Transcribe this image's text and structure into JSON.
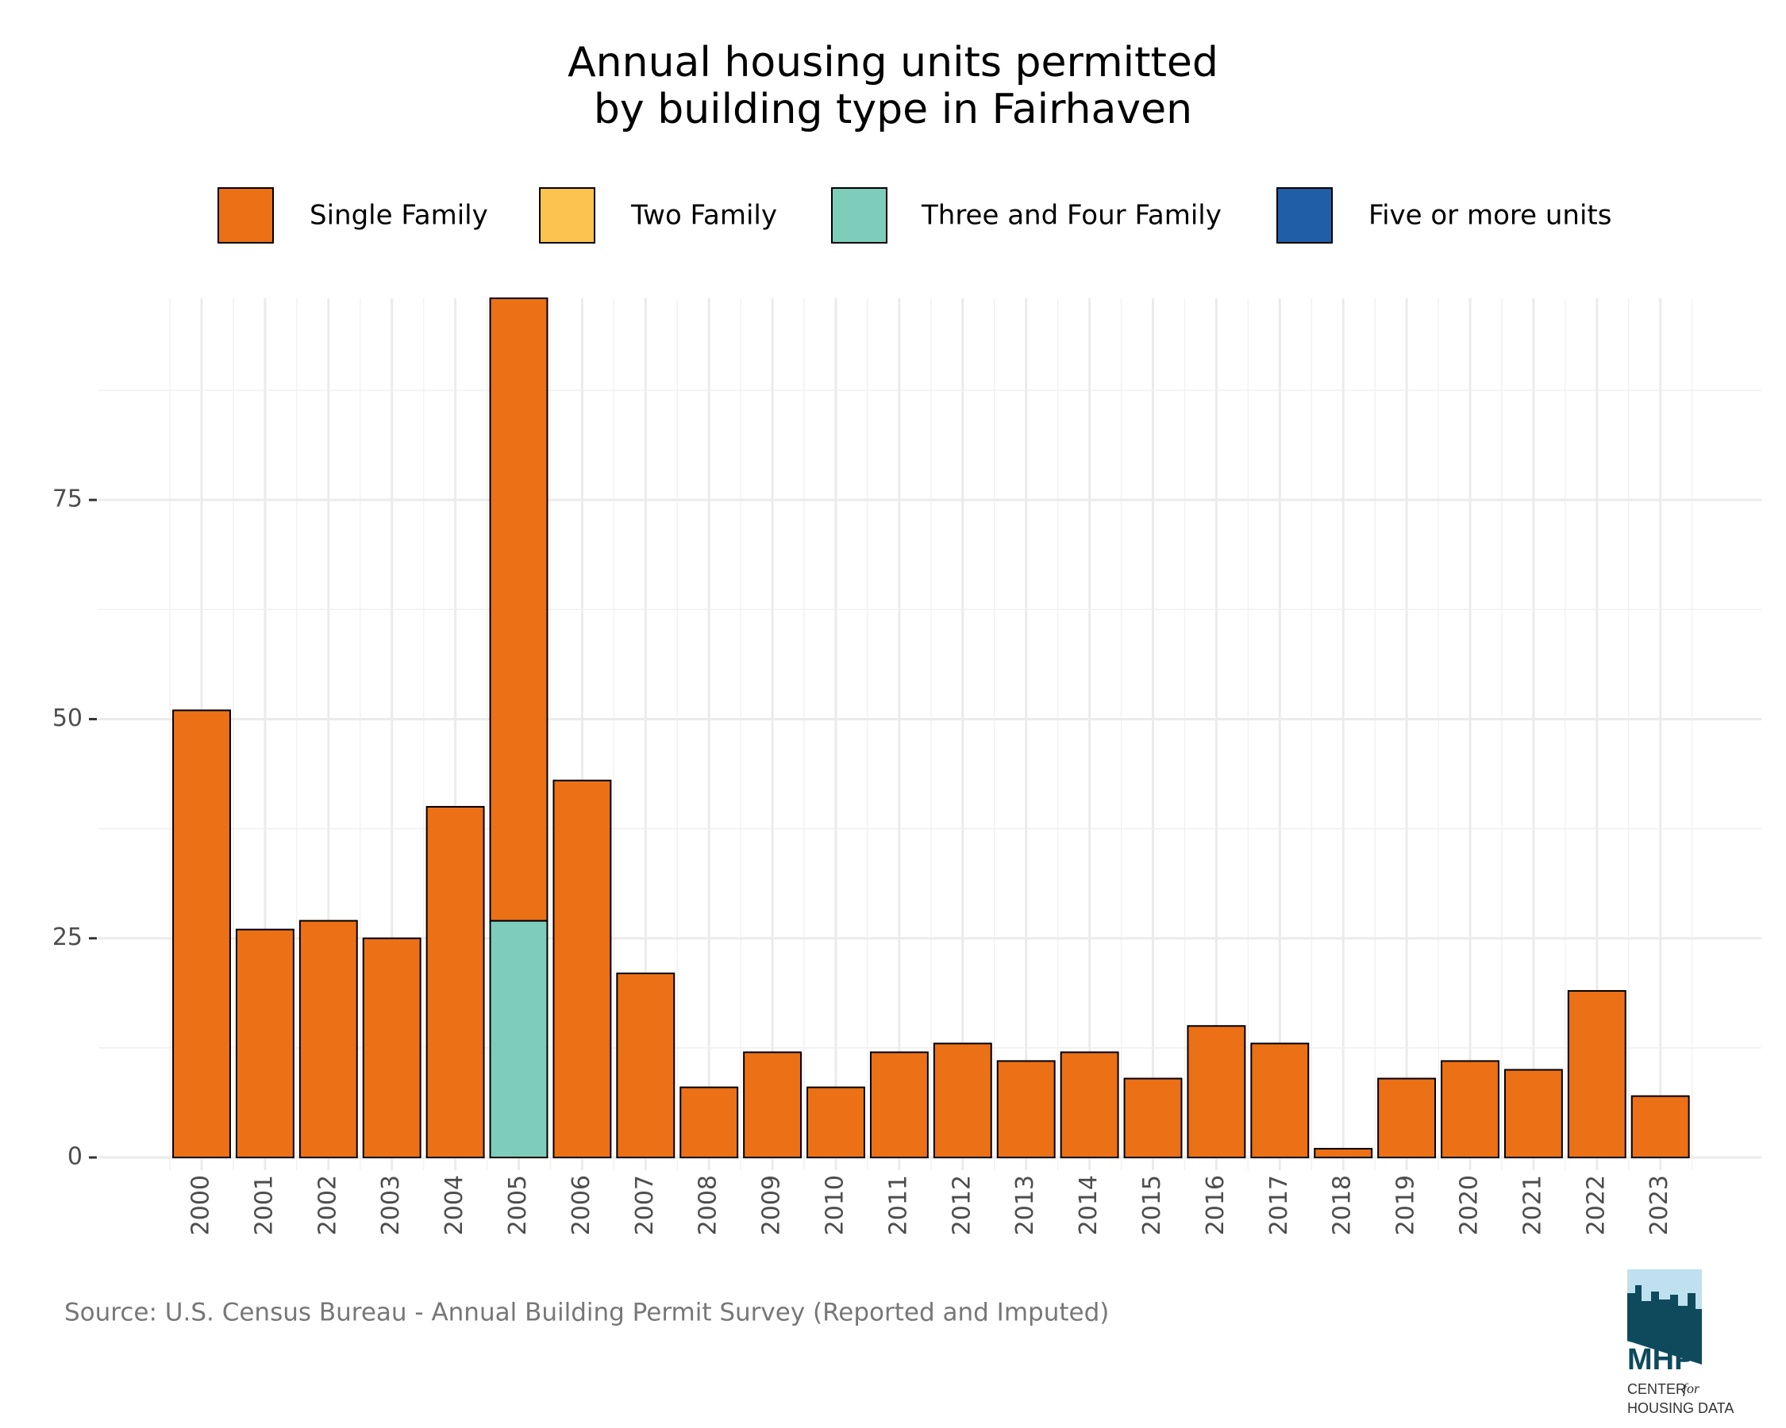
{
  "chart_data": {
    "type": "stacked_bar",
    "title": [
      "Annual housing units permitted",
      "by building type in Fairhaven"
    ],
    "categories": [
      "2000",
      "2001",
      "2002",
      "2003",
      "2004",
      "2005",
      "2006",
      "2007",
      "2008",
      "2009",
      "2010",
      "2011",
      "2012",
      "2013",
      "2014",
      "2015",
      "2016",
      "2017",
      "2018",
      "2019",
      "2020",
      "2021",
      "2022",
      "2023"
    ],
    "series": [
      {
        "name": "Single Family",
        "color": "#eb7016",
        "values": [
          51,
          26,
          27,
          25,
          40,
          71,
          43,
          21,
          8,
          12,
          8,
          12,
          13,
          11,
          12,
          9,
          15,
          13,
          1,
          9,
          11,
          10,
          19,
          7
        ]
      },
      {
        "name": "Two Family",
        "color": "#fdc34f",
        "values": [
          0,
          0,
          0,
          0,
          0,
          0,
          0,
          0,
          0,
          0,
          0,
          0,
          0,
          0,
          0,
          0,
          0,
          0,
          0,
          0,
          0,
          0,
          0,
          0
        ]
      },
      {
        "name": "Three and Four Family",
        "color": "#7ecdbb",
        "values": [
          0,
          0,
          0,
          0,
          0,
          27,
          0,
          0,
          0,
          0,
          0,
          0,
          0,
          0,
          0,
          0,
          0,
          0,
          0,
          0,
          0,
          0,
          0,
          0
        ]
      },
      {
        "name": "Five or more units",
        "color": "#205ea8",
        "values": [
          0,
          0,
          0,
          0,
          0,
          0,
          0,
          0,
          0,
          0,
          0,
          0,
          0,
          0,
          0,
          0,
          0,
          0,
          0,
          0,
          0,
          0,
          0,
          0
        ]
      }
    ],
    "ylim": [
      0,
      98
    ],
    "yticks": [
      0,
      25,
      50,
      75
    ],
    "minor_yticks": [
      12.5,
      37.5,
      62.5,
      87.5
    ],
    "grid": true,
    "legend": "top",
    "source": "Source: U.S. Census Bureau - Annual Building Permit Survey (Reported and Imputed)",
    "logo": {
      "name": "MHP",
      "line1": "CENTER",
      "for": "for",
      "line2": "HOUSING DATA"
    }
  }
}
